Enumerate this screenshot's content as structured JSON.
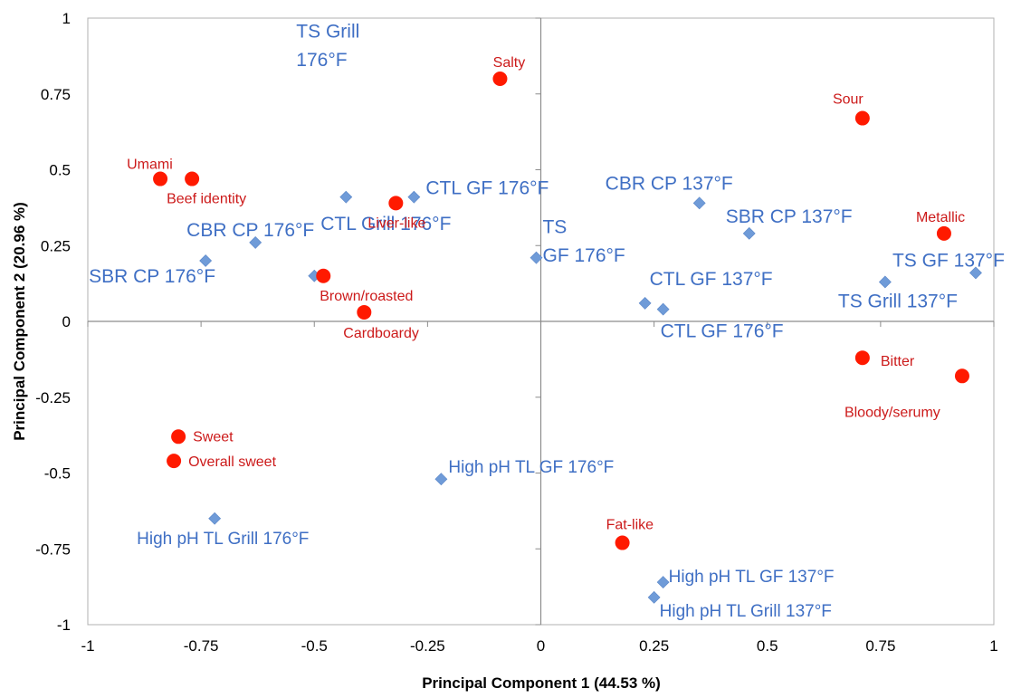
{
  "chart_data": {
    "type": "scatter",
    "title": "",
    "xlabel": "Principal Component 1 (44.53 %)",
    "ylabel": "Principal Component 2  (20.96 %)",
    "xlim": [
      -1,
      1
    ],
    "ylim": [
      -1,
      1
    ],
    "x_ticks": [
      -1,
      -0.75,
      -0.5,
      -0.25,
      0,
      0.25,
      0.5,
      0.75,
      1
    ],
    "y_ticks": [
      1,
      0.75,
      0.5,
      0.25,
      0,
      -0.25,
      -0.5,
      -0.75,
      -1
    ],
    "x_tick_labels": [
      "-1",
      "-0.75",
      "-0.5",
      "-0.25",
      "0",
      "0.25",
      "0.5",
      "0.75",
      "1"
    ],
    "y_tick_labels": [
      "1",
      "0.75",
      "0.5",
      "0.25",
      "0",
      "-0.25",
      "-0.5",
      "-0.75",
      "-1"
    ],
    "grid": false,
    "legend": "none",
    "colors": {
      "treatments": "#6f9bd8",
      "attributes": "#ff1a00",
      "treatment_text": "#3f6fc4",
      "attribute_text": "#cc1a1a"
    },
    "series": [
      {
        "marker": "diamond",
        "points": [
          {
            "label": "TS Grill\n176°F",
            "x": -0.43,
            "y": 0.41
          },
          {
            "label": "CTL GF 176°F",
            "x": -0.28,
            "y": 0.41
          },
          {
            "label": "CBR CP 176°F",
            "x": -0.63,
            "y": 0.26
          },
          {
            "label": "SBR CP 176°F",
            "x": -0.74,
            "y": 0.2
          },
          {
            "label": "CTL Grill 176°F",
            "x": -0.5,
            "y": 0.15
          },
          {
            "label": "TS\nGF 176°F",
            "x": -0.01,
            "y": 0.21
          },
          {
            "label": "CBR CP 137°F",
            "x": 0.35,
            "y": 0.39
          },
          {
            "label": "SBR CP 137°F",
            "x": 0.46,
            "y": 0.29
          },
          {
            "label": "TS GF 137°F",
            "x": 0.96,
            "y": 0.16
          },
          {
            "label": "TS Grill 137°F",
            "x": 0.76,
            "y": 0.13
          },
          {
            "label": "CTL GF 137°F",
            "x": 0.23,
            "y": 0.06
          },
          {
            "label": "CTL GF 176°F",
            "x": 0.27,
            "y": 0.04
          },
          {
            "label": "High pH TL GF 176°F",
            "x": -0.22,
            "y": -0.52
          },
          {
            "label": "High pH TL Grill 176°F",
            "x": -0.72,
            "y": -0.65
          },
          {
            "label": "High pH TL GF 137°F",
            "x": 0.27,
            "y": -0.86
          },
          {
            "label": "High pH TL Grill 137°F",
            "x": 0.25,
            "y": -0.91
          }
        ]
      },
      {
        "marker": "circle",
        "points": [
          {
            "label": "Salty",
            "x": -0.09,
            "y": 0.8
          },
          {
            "label": "Sour",
            "x": 0.71,
            "y": 0.67
          },
          {
            "label": "Umami",
            "x": -0.84,
            "y": 0.47
          },
          {
            "label": "Beef identity",
            "x": -0.77,
            "y": 0.47
          },
          {
            "label": "Liver-like",
            "x": -0.32,
            "y": 0.39
          },
          {
            "label": "Metallic",
            "x": 0.89,
            "y": 0.29
          },
          {
            "label": "Brown/roasted",
            "x": -0.48,
            "y": 0.15
          },
          {
            "label": "Cardboardy",
            "x": -0.39,
            "y": 0.03
          },
          {
            "label": "Bitter",
            "x": 0.71,
            "y": -0.12
          },
          {
            "label": "Bloody/serumy",
            "x": 0.93,
            "y": -0.18
          },
          {
            "label": "Sweet",
            "x": -0.8,
            "y": -0.38
          },
          {
            "label": "Overall sweet",
            "x": -0.81,
            "y": -0.46
          },
          {
            "label": "Fat-like",
            "x": 0.18,
            "y": -0.73
          }
        ]
      }
    ]
  }
}
